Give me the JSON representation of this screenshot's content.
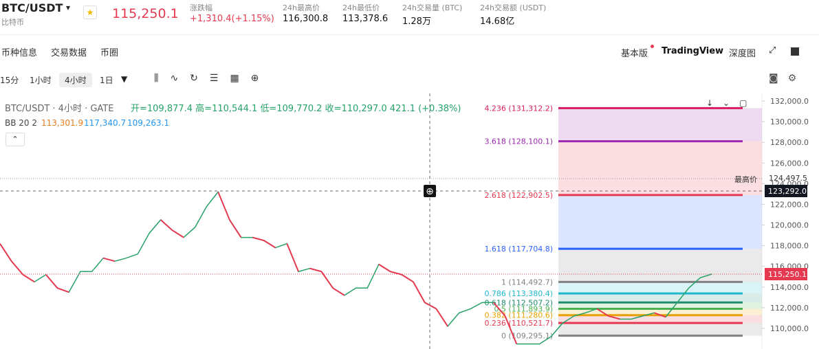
{
  "header": {
    "symbol": "BTC/USDT",
    "name": "比特币",
    "price": "115,250.1",
    "stats": [
      {
        "label": "涨跌幅",
        "value": "+1,310.4(+1.15%)"
      },
      {
        "label": "24h最高价",
        "value": "116,300.8"
      },
      {
        "label": "24h最低价",
        "value": "113,378.6"
      },
      {
        "label": "24h交易量 (BTC)",
        "value": "1.28万"
      },
      {
        "label": "24h交易额 (USDT)",
        "value": "14.68亿"
      }
    ]
  },
  "tabs": [
    "币种信息",
    "交易数据",
    "币圈"
  ],
  "views": [
    "基本版",
    "TradingView",
    "深度图"
  ],
  "intervals": [
    "15分",
    "1小时",
    "4小时",
    "1日"
  ],
  "chart": {
    "title": "BTC/USDT · 4小时 · GATE",
    "ohlc": "开=109,877.4 高=110,544.1 低=109,770.2 收=110,297.0 421.1 (+0.38%)",
    "bb": {
      "name": "BB 20 2",
      "values": [
        "113,301.9",
        "117,340.7",
        "109,263.1"
      ]
    },
    "price_ticks": [
      {
        "value": 132000,
        "label": "132,000.0"
      },
      {
        "value": 130000,
        "label": "130,000.0"
      },
      {
        "value": 128000,
        "label": "128,000.0"
      },
      {
        "value": 126000,
        "label": "126,000.0"
      },
      {
        "value": 124000,
        "label": "124,000.0"
      },
      {
        "value": 122000,
        "label": "122,000.0"
      },
      {
        "value": 120000,
        "label": "120,000.0"
      },
      {
        "value": 118000,
        "label": "118,000.0"
      },
      {
        "value": 116000,
        "label": "116,000.0"
      },
      {
        "value": 114000,
        "label": "114,000.0"
      },
      {
        "value": 112000,
        "label": "112,000.0"
      },
      {
        "value": 110000,
        "label": "110,000.0"
      }
    ],
    "fib": [
      {
        "label": "4.236 (131,312.2)",
        "price": 131312.2,
        "color": "#d81b60"
      },
      {
        "label": "3.618 (128,100.1)",
        "price": 128100.1,
        "color": "#9c27b0"
      },
      {
        "label": "2.618 (122,902.5)",
        "price": 122902.5,
        "color": "#e53950"
      },
      {
        "label": "1.618 (117,704.8)",
        "price": 117704.8,
        "color": "#2962ff"
      },
      {
        "label": "1 (114,492.7)",
        "price": 114492.7,
        "color": "#808080"
      },
      {
        "label": "0.786 (113,380.4)",
        "price": 113380.4,
        "color": "#1fb8cd"
      },
      {
        "label": "0.618 (112,507.2)",
        "price": 112507.2,
        "color": "#1e8c6e"
      },
      {
        "label": "0.5 (111,893.9)",
        "price": 111893.9,
        "color": "#4caf50"
      },
      {
        "label": "0.382 (111,280.6)",
        "price": 111280.6,
        "color": "#e6a100"
      },
      {
        "label": "0.236 (110,521.7)",
        "price": 110521.7,
        "color": "#e53950"
      },
      {
        "label": "0 (109,295.1)",
        "price": 109295.1,
        "color": "#808080"
      }
    ],
    "high": {
      "label": "最高价",
      "value": 124497.5,
      "text": "124,497.5"
    },
    "crosshair": {
      "value": 123292.0,
      "text": "123,292.0"
    },
    "last": {
      "value": 115250.1,
      "text": "115,250.1"
    },
    "closes": [
      118200,
      116500,
      115200,
      114500,
      115200,
      113900,
      113500,
      115500,
      115500,
      116800,
      116500,
      116800,
      117200,
      119200,
      120500,
      119500,
      118800,
      119800,
      121800,
      123200,
      120500,
      118800,
      118800,
      118500,
      117800,
      118200,
      115500,
      115800,
      115500,
      113900,
      113200,
      113900,
      113900,
      116200,
      115500,
      115200,
      114500,
      112500,
      111900,
      110200,
      111500,
      111900,
      112500,
      112500,
      111200,
      108500,
      108500,
      108500,
      109200,
      110500,
      111200,
      111500,
      111900,
      111200,
      110900,
      110900,
      111200,
      111500,
      111100,
      112500,
      113900,
      114900,
      115250
    ]
  }
}
